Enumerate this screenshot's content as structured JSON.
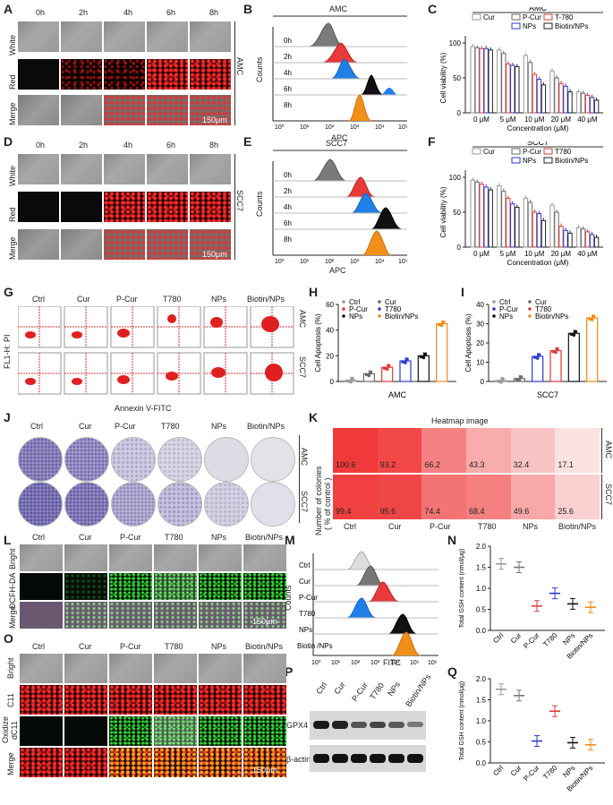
{
  "panels": {
    "A": "A",
    "B": "B",
    "C": "C",
    "D": "D",
    "E": "E",
    "F": "F",
    "G": "G",
    "H": "H",
    "I": "I",
    "J": "J",
    "K": "K",
    "L": "L",
    "M": "M",
    "N": "N",
    "O": "O",
    "P": "P",
    "Q": "Q"
  },
  "panelA": {
    "times": [
      "0h",
      "2h",
      "4h",
      "6h",
      "8h"
    ],
    "rows": [
      "White",
      "Red",
      "Merge"
    ],
    "cell_line": "AMC",
    "scale": "150μm"
  },
  "panelD": {
    "times": [
      "0h",
      "2h",
      "4h",
      "6h",
      "8h"
    ],
    "rows": [
      "White",
      "Red",
      "Merge"
    ],
    "cell_line": "SCC7",
    "scale": "150μm"
  },
  "panelB": {
    "title": "AMC",
    "ylabel": "Counts",
    "xlabel": "APC",
    "rows": [
      "0h",
      "2h",
      "4h",
      "6h",
      "8h"
    ],
    "ticks": [
      "10⁰",
      "10¹",
      "10²",
      "10³",
      "10⁴",
      "10⁵"
    ]
  },
  "panelE": {
    "title": "SCC7",
    "ylabel": "Counts",
    "xlabel": "APC",
    "rows": [
      "0h",
      "2h",
      "4h",
      "6h",
      "8h"
    ],
    "ticks": [
      "10⁰",
      "10¹",
      "10²",
      "10³",
      "10⁴",
      "10⁵"
    ]
  },
  "panelG": {
    "groups": [
      "Ctrl",
      "Cur",
      "P-Cur",
      "T780",
      "NPs",
      "Biotin/NPs"
    ],
    "rows": [
      "AMC",
      "SCC7"
    ],
    "ylabel": "FL1-H: PI",
    "xlabel": "Annexin V-FITC"
  },
  "panelJ": {
    "groups": [
      "Ctrl",
      "Cur",
      "P-Cur",
      "T780",
      "NPs",
      "Biotin/NPs"
    ],
    "rows": [
      "AMC",
      "SCC7"
    ]
  },
  "panelK": {
    "title": "Heatmap image",
    "ylabel": "Number of colonies",
    "ylabel2": "( % of control )",
    "groups": [
      "Ctrl",
      "Cur",
      "P-Cur",
      "T780",
      "NPs",
      "Biotin/NPs"
    ],
    "rows": [
      "AMC",
      "SCC7"
    ],
    "values_amc": [
      "100.6",
      "93.2",
      "66.2",
      "43.3",
      "32.4",
      "17.1"
    ],
    "values_scc7": [
      "99.4",
      "95.6",
      "74.4",
      "68.4",
      "49.6",
      "25.6"
    ]
  },
  "panelL": {
    "groups": [
      "Ctrl",
      "Cur",
      "P-Cur",
      "T780",
      "NPs",
      "Biotin/NPs"
    ],
    "rows": [
      "Bright",
      "DCFH-DA",
      "Merge"
    ],
    "scale": "150μm"
  },
  "panelM": {
    "ylabel": "Counts",
    "xlabel": "FITC",
    "rows": [
      "Ctrl",
      "Cur",
      "P-Cur",
      "T780",
      "NPs",
      "Biotin /NPs"
    ],
    "ticks": [
      "10⁰",
      "10¹",
      "10²",
      "10³",
      "10⁴",
      "10⁵",
      "10⁶"
    ]
  },
  "panelO": {
    "groups": [
      "Ctrl",
      "Cur",
      "P-Cur",
      "T780",
      "NPs",
      "Biotin/NPs"
    ],
    "rows": [
      "Bright",
      "C11",
      "Oxidize",
      "dC11",
      "Merge"
    ],
    "scale": "150μm"
  },
  "panelP": {
    "groups": [
      "Ctrl",
      "Cur",
      "P-Cur",
      "T780",
      "NPs",
      "Biotin/NPs"
    ],
    "bands": [
      "GPX4",
      "β-actin"
    ]
  },
  "chart_data": [
    {
      "id": "C",
      "type": "bar",
      "title": "AMC",
      "xlabel": "Concentration (μM)",
      "ylabel": "Cell viability (%)",
      "categories": [
        "0 μM",
        "5 μM",
        "10 μM",
        "20 μM",
        "40 μM"
      ],
      "ylim": [
        0,
        100
      ],
      "yticks": [
        "0",
        "50",
        "100"
      ],
      "series": [
        {
          "name": "Cur",
          "color": "#9a9a9a",
          "values": [
            95,
            90,
            82,
            60,
            30
          ]
        },
        {
          "name": "P-Cur",
          "color": "#6a6a6a",
          "values": [
            93,
            85,
            72,
            50,
            28
          ]
        },
        {
          "name": "T-780",
          "color": "#e03a3a",
          "values": [
            92,
            70,
            55,
            42,
            25
          ]
        },
        {
          "name": "NPs",
          "color": "#2a3ad0",
          "values": [
            92,
            68,
            48,
            38,
            22
          ]
        },
        {
          "name": "Biotin/NPs",
          "color": "#222222",
          "values": [
            90,
            66,
            40,
            30,
            18
          ]
        }
      ]
    },
    {
      "id": "F",
      "type": "bar",
      "title": "SCC7",
      "xlabel": "Concentration (μM)",
      "ylabel": "Cell viability (%)",
      "categories": [
        "0 μM",
        "5 μM",
        "10 μM",
        "20 μM",
        "40 μM"
      ],
      "ylim": [
        0,
        100
      ],
      "yticks": [
        "0",
        "50",
        "100"
      ],
      "series": [
        {
          "name": "Cur",
          "color": "#9a9a9a",
          "values": [
            96,
            88,
            70,
            60,
            28
          ]
        },
        {
          "name": "P-Cur",
          "color": "#6a6a6a",
          "values": [
            93,
            80,
            64,
            50,
            26
          ]
        },
        {
          "name": "T780",
          "color": "#e03a3a",
          "values": [
            90,
            70,
            50,
            30,
            22
          ]
        },
        {
          "name": "NPs",
          "color": "#2a3ad0",
          "values": [
            86,
            62,
            48,
            24,
            18
          ]
        },
        {
          "name": "Biotin/NPs",
          "color": "#222222",
          "values": [
            82,
            57,
            38,
            20,
            14
          ]
        }
      ]
    },
    {
      "id": "H",
      "type": "bar",
      "title": "AMC",
      "ylabel": "Cell Apoptosis (%)",
      "ylim": [
        0,
        60
      ],
      "yticks": [
        "0",
        "20",
        "40",
        "60"
      ],
      "categories": [
        "Ctrl",
        "Cur",
        "P-Cur",
        "T780",
        "NPs",
        "Biotin/NPs"
      ],
      "colors": [
        "#9a9a9a",
        "#6a6a6a",
        "#e03a3a",
        "#2a3ad0",
        "#111111",
        "#f08a10"
      ],
      "values": [
        1,
        6,
        11,
        16,
        20,
        45
      ]
    },
    {
      "id": "I",
      "type": "bar",
      "title": "SCC7",
      "ylabel": "Cell Apoptosis (%)",
      "ylim": [
        0,
        40
      ],
      "yticks": [
        "0",
        "10",
        "20",
        "30",
        "40"
      ],
      "categories": [
        "Ctrl",
        "Cur",
        "P-Cur",
        "T780",
        "NPs",
        "Biotin/NPs"
      ],
      "colors": [
        "#9a9a9a",
        "#6a6a6a",
        "#2a3ad0",
        "#e03a3a",
        "#111111",
        "#f08a10"
      ],
      "values": [
        0.5,
        1.5,
        13,
        16,
        25,
        33
      ]
    },
    {
      "id": "N",
      "type": "scatter",
      "title": "",
      "ylabel": "Total GSH content (nmol/μg)",
      "ylim": [
        0,
        2.0
      ],
      "yticks": [
        "0.0",
        "0.5",
        "1.0",
        "1.5",
        "2.0"
      ],
      "categories": [
        "Ctrl",
        "Cur",
        "P-Cur",
        "T780",
        "NPs",
        "Biotin/NPs"
      ],
      "colors": [
        "#999999",
        "#777777",
        "#e03a3a",
        "#2a3ad0",
        "#111111",
        "#f08a10"
      ],
      "values": [
        1.58,
        1.5,
        0.58,
        0.88,
        0.63,
        0.55
      ]
    },
    {
      "id": "Q",
      "type": "scatter",
      "title": "",
      "ylabel": "Total GSH content (nmol/μg)",
      "ylim": [
        0,
        2.0
      ],
      "yticks": [
        "0.0",
        "0.5",
        "1.0",
        "1.5",
        "2.0"
      ],
      "categories": [
        "Ctrl",
        "Cur",
        "P-Cur",
        "T780",
        "NPs",
        "Biotin/NPs"
      ],
      "colors": [
        "#999999",
        "#777777",
        "#2a3ad0",
        "#e03a3a",
        "#111111",
        "#f08a10"
      ],
      "values": [
        1.75,
        1.6,
        0.52,
        1.23,
        0.48,
        0.43
      ]
    }
  ]
}
